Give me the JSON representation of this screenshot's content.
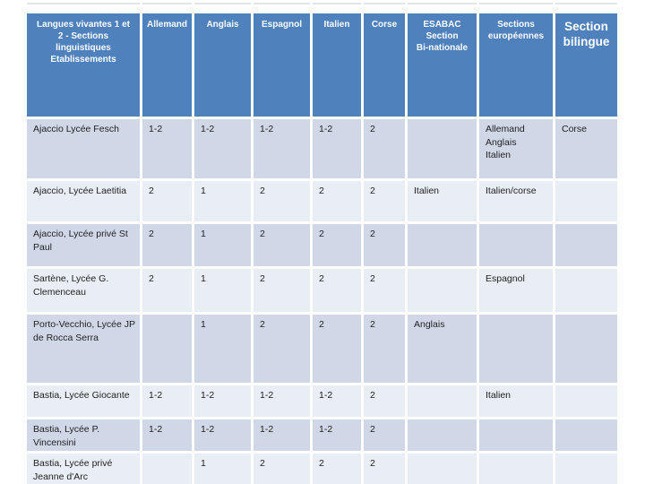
{
  "chart_data": {
    "type": "table",
    "columns": [
      "Langues vivantes 1 et\n2 - Sections\nlinguistiques\nEtablissements",
      "Allemand",
      "Anglais",
      "Espagnol",
      "Italien",
      "Corse",
      "ESABAC\nSection\nBi-nationale",
      "Sections\neuropéennes",
      "Section\nbilingue"
    ],
    "rows": [
      [
        "Ajaccio Lycée Fesch",
        "1-2",
        "1-2",
        "1-2",
        "1-2",
        "2",
        "",
        "Allemand\nAnglais\nItalien",
        "Corse"
      ],
      [
        "Ajaccio, Lycée Laetitia",
        "2",
        "1",
        "2",
        "2",
        "2",
        "Italien",
        "Italien/corse",
        ""
      ],
      [
        "Ajaccio, Lycée privé St Paul",
        "2",
        "1",
        "2",
        "2",
        "2",
        "",
        "",
        ""
      ],
      [
        "Sartène, Lycée G. Clemenceau",
        "2",
        "1",
        "2",
        "2",
        "2",
        "",
        "Espagnol",
        ""
      ],
      [
        "Porto-Vecchio, Lycée JP de Rocca Serra",
        "",
        "1",
        "2",
        "2",
        "2",
        "Anglais",
        "",
        ""
      ],
      [
        "Bastia, Lycée Giocante",
        "1-2",
        "1-2",
        "1-2",
        "1-2",
        "2",
        "",
        "Italien",
        ""
      ],
      [
        "Bastia, Lycée P. Vincensini",
        "1-2",
        "1-2",
        "1-2",
        "1-2",
        "2",
        "",
        "",
        ""
      ],
      [
        "Bastia, Lycée privé Jeanne d'Arc",
        "",
        "1",
        "2",
        "2",
        "2",
        "",
        "",
        ""
      ]
    ]
  },
  "colors": {
    "header_bg": "#4F81BD",
    "header_text": "#FFFFFF",
    "band_odd": "#D0D8E8",
    "band_even": "#E9EDF4",
    "body_text": "#1F1F1F"
  }
}
